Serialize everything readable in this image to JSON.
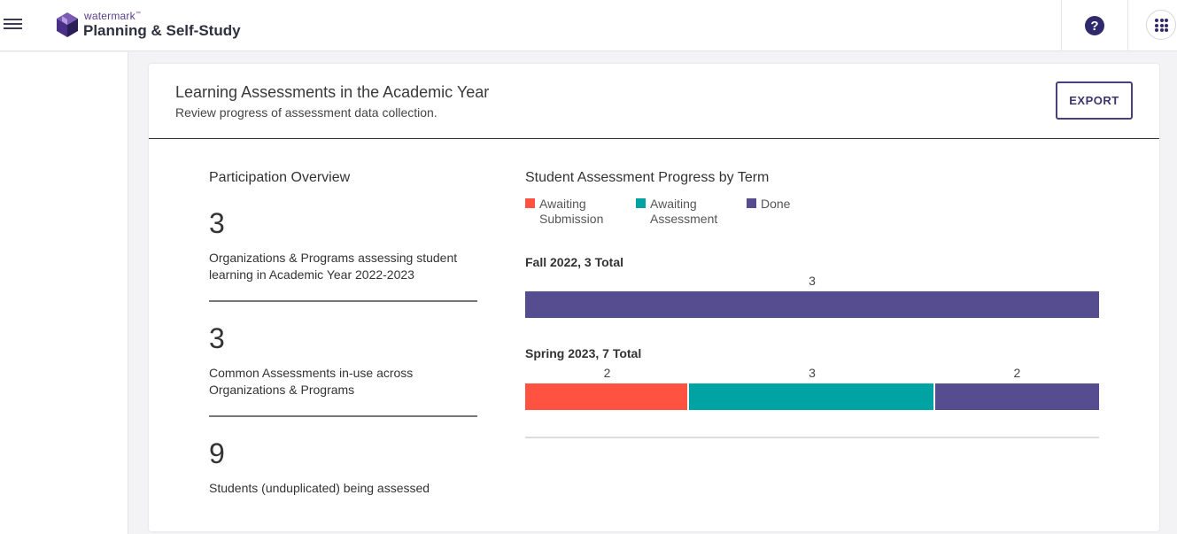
{
  "header": {
    "brand_small": "watermark",
    "brand_tm": "™",
    "product": "Planning & Self-Study",
    "help_symbol": "?",
    "icons": [
      "menu-icon",
      "watermark-logo",
      "help-icon",
      "apps-grid-icon"
    ]
  },
  "card": {
    "title": "Learning Assessments in the Academic Year",
    "subtitle": "Review progress of assessment data collection.",
    "export_label": "EXPORT"
  },
  "overview": {
    "title": "Participation Overview",
    "stats": [
      {
        "value": "3",
        "description": "Organizations & Programs assessing student learning in Academic Year 2022-2023"
      },
      {
        "value": "3",
        "description": "Common Assessments in-use across Organizations & Programs"
      },
      {
        "value": "9",
        "description": "Students (unduplicated) being assessed"
      }
    ]
  },
  "chart_data": {
    "type": "bar",
    "orientation": "horizontal-stacked",
    "title": "Student Assessment Progress by Term",
    "series": [
      {
        "name": "Awaiting Submission",
        "color": "#ff5240"
      },
      {
        "name": "Awaiting Assessment",
        "color": "#00a3a3"
      },
      {
        "name": "Done",
        "color": "#564d91"
      }
    ],
    "terms": [
      {
        "label": "Fall 2022, 3 Total",
        "values": [
          0,
          0,
          3
        ]
      },
      {
        "label": "Spring 2023, 7 Total",
        "values": [
          2,
          3,
          2
        ]
      }
    ]
  },
  "colors": {
    "brand_purple": "#2f2a6e",
    "done": "#564d91",
    "awaiting_submission": "#ff5240",
    "awaiting_assessment": "#00a3a3"
  }
}
